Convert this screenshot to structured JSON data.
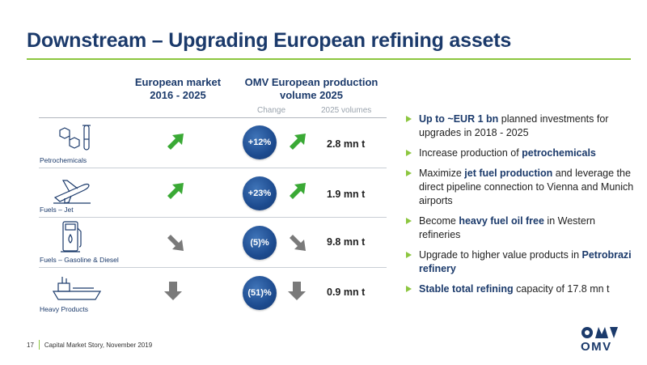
{
  "title": "Downstream – Upgrading European refining assets",
  "columns": {
    "market": "European market\n2016 - 2025",
    "omv": "OMV European production\nvolume 2025",
    "change": "Change",
    "volumes": "2025 volumes"
  },
  "rows": [
    {
      "label": "Petrochemicals",
      "icon": "molecule-testtube-icon",
      "market_trend": "up",
      "change": "+12%",
      "change_trend": "up",
      "volume": "2.8 mn t"
    },
    {
      "label": "Fuels – Jet",
      "icon": "airplane-icon",
      "market_trend": "up",
      "change": "+23%",
      "change_trend": "up",
      "volume": "1.9 mn t"
    },
    {
      "label": "Fuels – Gasoline & Diesel",
      "icon": "fuel-pump-icon",
      "market_trend": "down-right",
      "change": "(5)%",
      "change_trend": "down-right",
      "volume": "9.8 mn t"
    },
    {
      "label": "Heavy Products",
      "icon": "ship-icon",
      "market_trend": "down",
      "change": "(51)%",
      "change_trend": "down",
      "volume": "0.9 mn t"
    }
  ],
  "bullets": [
    {
      "parts": [
        {
          "text": "Up to ~EUR 1 bn",
          "hl": true
        },
        {
          "text": " planned investments for upgrades in 2018 - 2025",
          "hl": false
        }
      ]
    },
    {
      "parts": [
        {
          "text": "Increase production of ",
          "hl": false
        },
        {
          "text": "petrochemicals",
          "hl": true
        }
      ]
    },
    {
      "parts": [
        {
          "text": "Maximize ",
          "hl": false
        },
        {
          "text": "jet fuel production",
          "hl": true
        },
        {
          "text": " and leverage the direct pipeline connection to Vienna and Munich airports",
          "hl": false
        }
      ]
    },
    {
      "parts": [
        {
          "text": "Become ",
          "hl": false
        },
        {
          "text": "heavy fuel oil free",
          "hl": true
        },
        {
          "text": " in Western refineries",
          "hl": false
        }
      ]
    },
    {
      "parts": [
        {
          "text": "Upgrade to higher value products in ",
          "hl": false
        },
        {
          "text": "Petrobrazi refinery",
          "hl": true
        }
      ]
    },
    {
      "parts": [
        {
          "text": "Stable total refining",
          "hl": true
        },
        {
          "text": " capacity of 17.8 mn t",
          "hl": false
        }
      ]
    }
  ],
  "footer": {
    "page": "17",
    "text": "Capital Market Story, November 2019"
  },
  "logo": {
    "text": "OMV",
    "color": "#1b3a6b"
  },
  "colors": {
    "green": "#8cc63f",
    "navy": "#1b3a6b",
    "grey_arrow": "#7a7a7a",
    "up_arrow": "#3aa935"
  }
}
